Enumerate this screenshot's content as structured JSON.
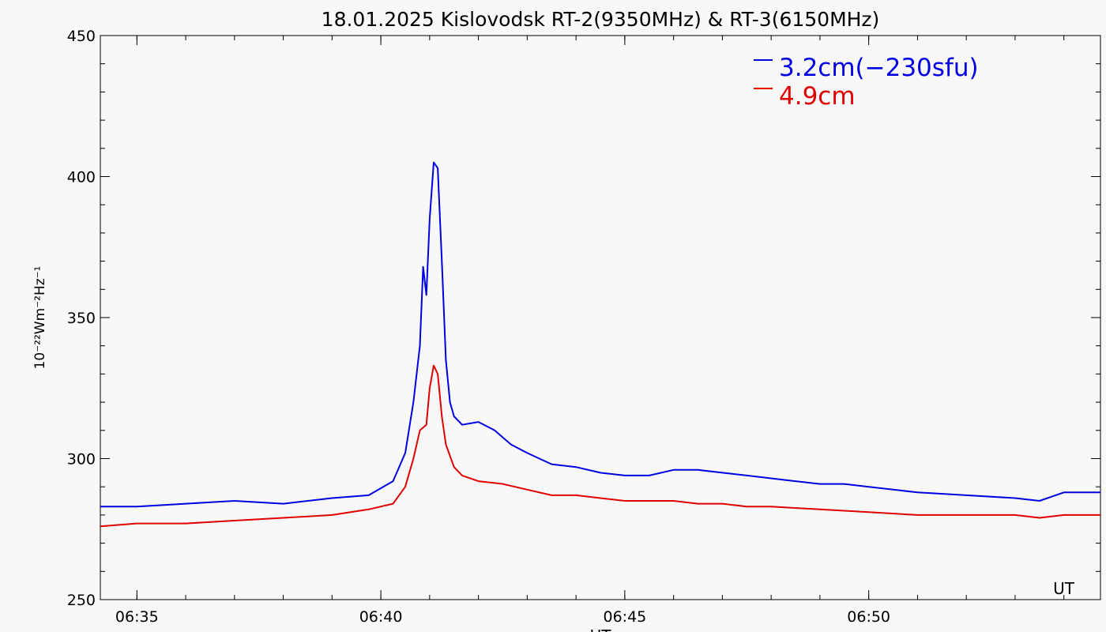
{
  "chart_data": {
    "type": "line",
    "title": "18.01.2025 Kislovodsk RT-2(9350MHz) & RT-3(6150MHz)",
    "xlabel": "UT",
    "ylabel": "10⁻²²Wm⁻²Hz⁻¹",
    "corner_label": "UT",
    "xlim": [
      "06:34:15",
      "06:54:45"
    ],
    "ylim": [
      250,
      450
    ],
    "x_ticks": [
      "06:35",
      "06:40",
      "06:45",
      "06:50"
    ],
    "y_ticks": [
      250,
      300,
      350,
      400,
      450
    ],
    "grid": false,
    "legend_position": "top-right",
    "series": [
      {
        "name": "3.2cm(−230sfu)",
        "color": "#0000e0",
        "x": [
          "06:34:15",
          "06:35:00",
          "06:36:00",
          "06:37:00",
          "06:38:00",
          "06:39:00",
          "06:39:45",
          "06:40:15",
          "06:40:30",
          "06:40:40",
          "06:40:48",
          "06:40:52",
          "06:40:56",
          "06:41:00",
          "06:41:05",
          "06:41:10",
          "06:41:15",
          "06:41:20",
          "06:41:25",
          "06:41:30",
          "06:41:40",
          "06:42:00",
          "06:42:20",
          "06:42:40",
          "06:43:00",
          "06:43:30",
          "06:44:00",
          "06:44:30",
          "06:45:00",
          "06:45:30",
          "06:46:00",
          "06:46:30",
          "06:47:00",
          "06:47:30",
          "06:48:00",
          "06:48:30",
          "06:49:00",
          "06:49:30",
          "06:50:00",
          "06:51:00",
          "06:52:00",
          "06:53:00",
          "06:53:30",
          "06:54:00",
          "06:54:45"
        ],
        "values": [
          283,
          283,
          284,
          285,
          284,
          286,
          287,
          292,
          302,
          320,
          340,
          368,
          358,
          385,
          405,
          403,
          370,
          335,
          320,
          315,
          312,
          313,
          310,
          305,
          302,
          298,
          297,
          295,
          294,
          294,
          296,
          296,
          295,
          294,
          293,
          292,
          291,
          291,
          290,
          288,
          287,
          286,
          285,
          288,
          288
        ]
      },
      {
        "name": "4.9cm",
        "color": "#e00000",
        "x": [
          "06:34:15",
          "06:35:00",
          "06:36:00",
          "06:37:00",
          "06:38:00",
          "06:39:00",
          "06:39:45",
          "06:40:15",
          "06:40:30",
          "06:40:40",
          "06:40:48",
          "06:40:56",
          "06:41:00",
          "06:41:05",
          "06:41:10",
          "06:41:15",
          "06:41:20",
          "06:41:30",
          "06:41:40",
          "06:42:00",
          "06:42:30",
          "06:43:00",
          "06:43:30",
          "06:44:00",
          "06:44:30",
          "06:45:00",
          "06:45:30",
          "06:46:00",
          "06:46:30",
          "06:47:00",
          "06:47:30",
          "06:48:00",
          "06:49:00",
          "06:50:00",
          "06:51:00",
          "06:52:00",
          "06:53:00",
          "06:53:30",
          "06:54:00",
          "06:54:45"
        ],
        "values": [
          276,
          277,
          277,
          278,
          279,
          280,
          282,
          284,
          290,
          300,
          310,
          312,
          325,
          333,
          330,
          315,
          305,
          297,
          294,
          292,
          291,
          289,
          287,
          287,
          286,
          285,
          285,
          285,
          284,
          284,
          283,
          283,
          282,
          281,
          280,
          280,
          280,
          279,
          280,
          280
        ]
      }
    ]
  }
}
